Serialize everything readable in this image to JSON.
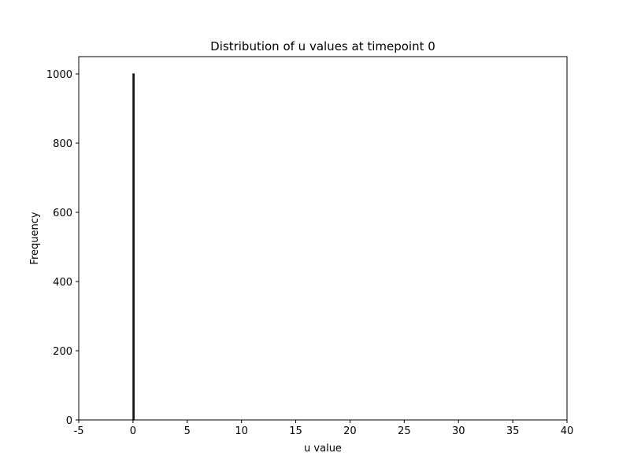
{
  "chart_data": {
    "type": "bar",
    "title": "Distribution of u values at timepoint 0",
    "xlabel": "u value",
    "ylabel": "Frequency",
    "xlim": [
      -5,
      40
    ],
    "ylim": [
      0,
      1050
    ],
    "xticks": [
      "-5",
      "0",
      "5",
      "10",
      "15",
      "20",
      "25",
      "30",
      "35",
      "40"
    ],
    "yticks": [
      "0",
      "200",
      "400",
      "600",
      "800",
      "1000"
    ],
    "bins": [
      {
        "x_start": 0.0,
        "x_end": 0.1,
        "count": 1000
      }
    ],
    "colors": {
      "bar_fill": "#1f77b4",
      "bar_edge": "#000000",
      "axes": "#000000"
    },
    "grid": false
  }
}
